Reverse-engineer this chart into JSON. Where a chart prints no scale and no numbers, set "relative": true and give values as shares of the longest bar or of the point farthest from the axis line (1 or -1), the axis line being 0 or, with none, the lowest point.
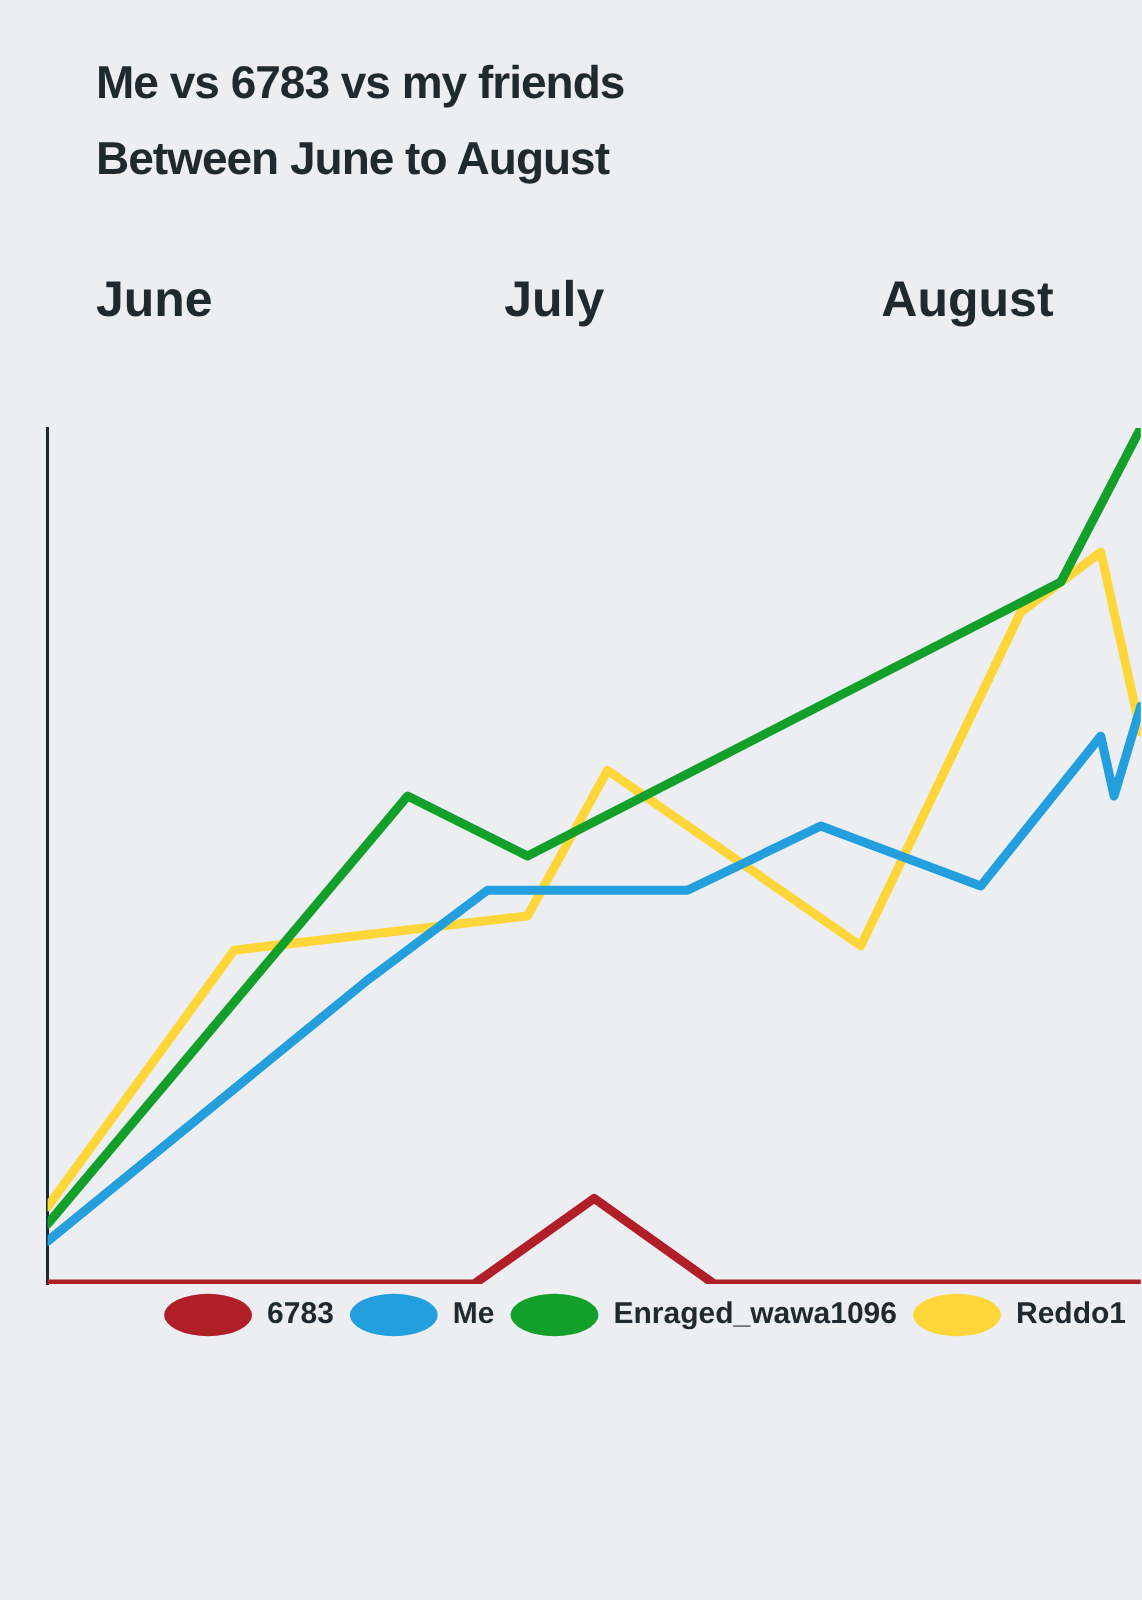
{
  "chart_data": {
    "type": "line",
    "title": "Me vs 6783 vs my friends",
    "subtitle": "Between June to August",
    "relative": true,
    "grid": false,
    "legend": "bottom right",
    "marker": "none",
    "line_style": "solid",
    "xlim": [
      "--05-24",
      "--08-14"
    ],
    "xticks": [
      {
        "value": "--06-01",
        "label": "June"
      },
      {
        "value": "--07-01",
        "label": "July"
      },
      {
        "value": "--08-01",
        "label": "August"
      }
    ],
    "series": [
      {
        "name": "6783",
        "color": "#b01e28",
        "x": [
          "--05-24",
          "--06-25",
          "--07-04",
          "--07-13",
          "--08-14"
        ],
        "values": [
          0,
          0,
          0.1,
          0,
          0
        ]
      },
      {
        "name": "Me",
        "color": "#229fdc",
        "x": [
          "--05-24",
          "--06-17",
          "--06-26",
          "--07-11",
          "--07-21",
          "--08-02",
          "--08-11",
          "--08-12",
          "--08-14"
        ],
        "values": [
          0.05,
          0.355,
          0.46,
          0.46,
          0.535,
          0.465,
          0.64,
          0.57,
          0.675
        ]
      },
      {
        "name": "Enraged_wawa1096",
        "color": "#13a02a",
        "x": [
          "--05-24",
          "--06-20",
          "--06-29",
          "--08-08",
          "--08-14"
        ],
        "values": [
          0.07,
          0.57,
          0.5,
          0.82,
          1
        ]
      },
      {
        "name": "Reddo1",
        "color": "#ffd63a",
        "x": [
          "--05-24",
          "--06-07",
          "--06-29",
          "--07-05",
          "--07-24",
          "--08-05",
          "--08-11",
          "--08-14"
        ],
        "values": [
          0.09,
          0.39,
          0.43,
          0.6,
          0.395,
          0.785,
          0.855,
          0.645
        ]
      }
    ]
  }
}
